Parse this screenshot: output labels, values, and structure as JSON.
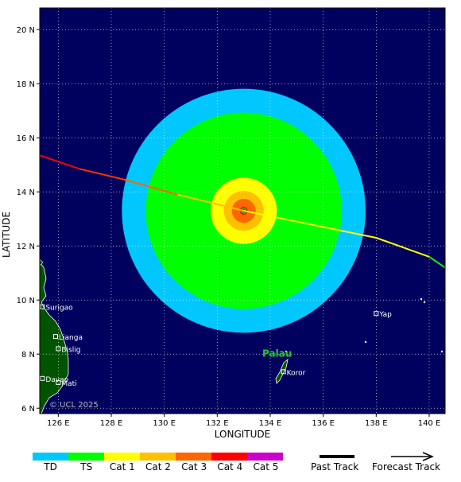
{
  "map": {
    "xlabel": "LONGITUDE",
    "ylabel": "LATITUDE",
    "lon_range": [
      125.3,
      140.6
    ],
    "lat_range": [
      5.8,
      20.8
    ],
    "lon_ticks": [
      "126 E",
      "128 E",
      "130 E",
      "132 E",
      "134 E",
      "136 E",
      "138 E",
      "140 E"
    ],
    "lat_ticks": [
      "20 N",
      "18 N",
      "16 N",
      "14 N",
      "12 N",
      "10 N",
      "8 N",
      "6 N"
    ],
    "ocean_color": "#00005f",
    "land_color": "#005400",
    "copyright": "© UCL 2025",
    "region_label": "Palau",
    "region_label_color": "#22cc22"
  },
  "storm": {
    "center": {
      "lon": 133.0,
      "lat": 13.3
    },
    "wind_fields": [
      {
        "category": "TD",
        "radius_deg": 4.6,
        "color": "#00c8ff"
      },
      {
        "category": "TS",
        "radius_deg": 3.7,
        "color": "#00ff00"
      },
      {
        "category": "Cat 1",
        "radius_deg": 1.25,
        "color": "#ffff00"
      },
      {
        "category": "Cat 2",
        "radius_deg": 0.75,
        "color": "#ffc000"
      },
      {
        "category": "Cat 3",
        "radius_deg": 0.45,
        "color": "#ff6600"
      },
      {
        "category": "Cat 4",
        "radius_deg": 0.15,
        "color": "#ff0000"
      }
    ],
    "track": [
      {
        "lon": 125.3,
        "lat": 15.35,
        "color": "#ff0000"
      },
      {
        "lon": 126.8,
        "lat": 14.85,
        "color": "#ff3300"
      },
      {
        "lon": 128.5,
        "lat": 14.45,
        "color": "#ff6600"
      },
      {
        "lon": 130.5,
        "lat": 13.9,
        "color": "#ffc000"
      },
      {
        "lon": 133.0,
        "lat": 13.3,
        "color": "#ffff00"
      },
      {
        "lon": 135.5,
        "lat": 12.8,
        "color": "#ffff00"
      },
      {
        "lon": 138.0,
        "lat": 12.3,
        "color": "#ffff00"
      },
      {
        "lon": 140.0,
        "lat": 11.6,
        "color": "#00ff00"
      },
      {
        "lon": 140.6,
        "lat": 11.2,
        "color": "#00ff00"
      }
    ]
  },
  "places": [
    {
      "name": "Surigao",
      "lon": 125.4,
      "lat": 9.75
    },
    {
      "name": "Lianga",
      "lon": 125.9,
      "lat": 8.65
    },
    {
      "name": "Bislig",
      "lon": 126.0,
      "lat": 8.2
    },
    {
      "name": "Davao",
      "lon": 125.4,
      "lat": 7.1
    },
    {
      "name": "Mati",
      "lon": 126.0,
      "lat": 6.95
    },
    {
      "name": "Koror",
      "lon": 134.5,
      "lat": 7.35
    },
    {
      "name": "Yap",
      "lon": 138.0,
      "lat": 9.5
    }
  ],
  "legend": {
    "categories": [
      {
        "label": "TD",
        "color": "#00c8ff"
      },
      {
        "label": "TS",
        "color": "#00ff00"
      },
      {
        "label": "Cat 1",
        "color": "#ffff00"
      },
      {
        "label": "Cat 2",
        "color": "#ffc000"
      },
      {
        "label": "Cat 3",
        "color": "#ff6600"
      },
      {
        "label": "Cat 4",
        "color": "#ff0000"
      },
      {
        "label": "Cat 5",
        "color": "#cc00cc"
      }
    ],
    "past_track": "Past Track",
    "forecast_track": "Forecast Track"
  }
}
